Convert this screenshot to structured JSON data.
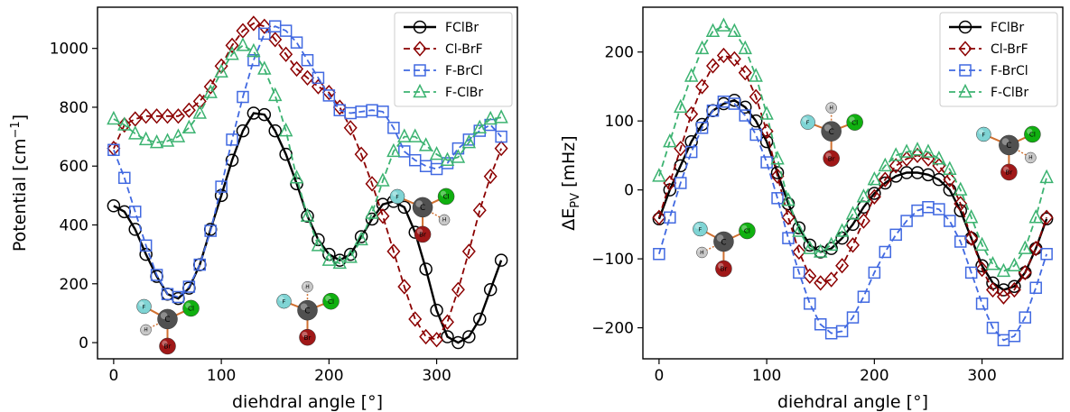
{
  "figure": {
    "molecule_atoms": {
      "F": "F",
      "Cl": "Cl",
      "Br": "Br",
      "H": "H",
      "C": "C"
    }
  },
  "colors": {
    "FClBr": "#000000",
    "Cl-BrF": "#8b0000",
    "F-BrCl": "#4169e1",
    "F-ClBr": "#3cb371",
    "atom_F": "#7fd4d4",
    "atom_Cl": "#10b010",
    "atom_Br": "#a01818",
    "atom_H": "#c8c8c8",
    "atom_C": "#505050",
    "bond": "#d07030"
  },
  "chart_data": [
    {
      "type": "line",
      "xlabel": "diehdral angle [°]",
      "ylabel": "Potential [cm⁻¹]",
      "xlim": [
        -15,
        375
      ],
      "ylim": [
        -55,
        1140
      ],
      "xticks": [
        0,
        100,
        200,
        300
      ],
      "yticks": [
        0,
        200,
        400,
        600,
        800,
        1000
      ],
      "legend": "top-right",
      "series": [
        {
          "name": "FClBr",
          "style": "solid-circle",
          "x": [
            0,
            10,
            20,
            30,
            40,
            50,
            60,
            70,
            80,
            90,
            100,
            110,
            120,
            130,
            140,
            150,
            160,
            170,
            180,
            190,
            200,
            210,
            220,
            230,
            240,
            250,
            260,
            270,
            280,
            290,
            300,
            310,
            320,
            330,
            340,
            350,
            360
          ],
          "y": [
            465,
            445,
            385,
            300,
            225,
            165,
            150,
            185,
            265,
            385,
            500,
            620,
            720,
            780,
            775,
            720,
            640,
            540,
            430,
            350,
            300,
            280,
            300,
            360,
            420,
            470,
            480,
            460,
            375,
            250,
            110,
            20,
            0,
            20,
            80,
            180,
            280
          ]
        },
        {
          "name": "Cl-BrF",
          "style": "dashed-diamond",
          "x": [
            0,
            10,
            20,
            30,
            40,
            50,
            60,
            70,
            80,
            90,
            100,
            110,
            120,
            130,
            140,
            150,
            160,
            170,
            180,
            190,
            200,
            210,
            220,
            230,
            240,
            250,
            260,
            270,
            280,
            290,
            300,
            310,
            320,
            330,
            340,
            350,
            360
          ],
          "y": [
            660,
            740,
            760,
            770,
            770,
            770,
            770,
            790,
            820,
            870,
            940,
            1010,
            1060,
            1085,
            1075,
            1030,
            980,
            930,
            900,
            870,
            850,
            800,
            730,
            640,
            540,
            430,
            310,
            190,
            80,
            20,
            10,
            70,
            180,
            310,
            450,
            565,
            660
          ]
        },
        {
          "name": "F-BrCl",
          "style": "dashed-square",
          "x": [
            0,
            10,
            20,
            30,
            40,
            50,
            60,
            70,
            80,
            90,
            100,
            110,
            120,
            130,
            140,
            150,
            160,
            170,
            180,
            190,
            200,
            210,
            220,
            230,
            240,
            250,
            260,
            270,
            280,
            290,
            300,
            310,
            320,
            330,
            340,
            350,
            360
          ],
          "y": [
            655,
            560,
            445,
            330,
            230,
            165,
            155,
            190,
            265,
            380,
            530,
            690,
            835,
            960,
            1050,
            1075,
            1060,
            1020,
            960,
            900,
            840,
            790,
            780,
            785,
            790,
            785,
            730,
            650,
            620,
            600,
            590,
            610,
            660,
            690,
            720,
            740,
            700
          ]
        },
        {
          "name": "F-ClBr",
          "style": "dashed-triangle",
          "x": [
            0,
            10,
            20,
            30,
            40,
            50,
            60,
            70,
            80,
            90,
            100,
            110,
            120,
            130,
            140,
            150,
            160,
            170,
            180,
            190,
            200,
            210,
            220,
            230,
            240,
            250,
            260,
            270,
            280,
            290,
            300,
            310,
            320,
            330,
            340,
            350,
            360
          ],
          "y": [
            760,
            740,
            710,
            690,
            680,
            685,
            700,
            730,
            780,
            850,
            920,
            980,
            1010,
            990,
            930,
            840,
            720,
            560,
            430,
            330,
            280,
            270,
            290,
            350,
            440,
            550,
            650,
            700,
            700,
            670,
            640,
            620,
            630,
            680,
            730,
            760,
            765
          ]
        }
      ]
    },
    {
      "type": "line",
      "xlabel": "diehdral angle [°]",
      "ylabel": "ΔE_PV [mHz]",
      "xlim": [
        -15,
        375
      ],
      "ylim": [
        -245,
        265
      ],
      "xticks": [
        0,
        100,
        200,
        300
      ],
      "yticks": [
        -200,
        -100,
        0,
        100,
        200
      ],
      "legend": "top-right",
      "series": [
        {
          "name": "FClBr",
          "style": "solid-circle",
          "x": [
            0,
            10,
            20,
            30,
            40,
            50,
            60,
            70,
            80,
            90,
            100,
            110,
            120,
            130,
            140,
            150,
            160,
            170,
            180,
            190,
            200,
            210,
            220,
            230,
            240,
            250,
            260,
            270,
            280,
            290,
            300,
            310,
            320,
            330,
            340,
            350,
            360
          ],
          "y": [
            -42,
            0,
            35,
            70,
            95,
            115,
            125,
            130,
            120,
            100,
            70,
            25,
            -20,
            -55,
            -80,
            -90,
            -85,
            -70,
            -50,
            -25,
            -5,
            10,
            20,
            25,
            25,
            22,
            15,
            0,
            -30,
            -70,
            -110,
            -135,
            -145,
            -140,
            -120,
            -85,
            -42
          ]
        },
        {
          "name": "Cl-BrF",
          "style": "dashed-diamond",
          "x": [
            0,
            10,
            20,
            30,
            40,
            50,
            60,
            70,
            80,
            90,
            100,
            110,
            120,
            130,
            140,
            150,
            160,
            170,
            180,
            190,
            200,
            210,
            220,
            230,
            240,
            250,
            260,
            270,
            280,
            290,
            300,
            310,
            320,
            330,
            340,
            350,
            360
          ],
          "y": [
            -40,
            10,
            60,
            110,
            150,
            180,
            195,
            190,
            170,
            135,
            85,
            20,
            -40,
            -90,
            -125,
            -135,
            -130,
            -110,
            -80,
            -45,
            -10,
            15,
            35,
            45,
            50,
            45,
            35,
            15,
            -20,
            -70,
            -115,
            -145,
            -155,
            -145,
            -120,
            -85,
            -40
          ]
        },
        {
          "name": "F-BrCl",
          "style": "dashed-square",
          "x": [
            0,
            10,
            20,
            30,
            40,
            50,
            60,
            70,
            80,
            90,
            100,
            110,
            120,
            130,
            140,
            150,
            160,
            170,
            180,
            190,
            200,
            210,
            220,
            230,
            240,
            250,
            260,
            270,
            280,
            290,
            300,
            310,
            320,
            330,
            340,
            350,
            360
          ],
          "y": [
            -93,
            -40,
            10,
            55,
            90,
            115,
            128,
            125,
            108,
            80,
            40,
            -12,
            -70,
            -120,
            -165,
            -195,
            -208,
            -205,
            -185,
            -155,
            -120,
            -90,
            -65,
            -45,
            -30,
            -25,
            -28,
            -45,
            -75,
            -120,
            -165,
            -200,
            -218,
            -212,
            -185,
            -142,
            -93
          ]
        },
        {
          "name": "F-ClBr",
          "style": "dashed-triangle",
          "x": [
            0,
            10,
            20,
            30,
            40,
            50,
            60,
            70,
            80,
            90,
            100,
            110,
            120,
            130,
            140,
            150,
            160,
            170,
            180,
            190,
            200,
            210,
            220,
            230,
            240,
            250,
            260,
            270,
            280,
            290,
            300,
            310,
            320,
            330,
            340,
            350,
            360
          ],
          "y": [
            20,
            70,
            120,
            165,
            205,
            230,
            238,
            230,
            205,
            165,
            110,
            45,
            -15,
            -60,
            -85,
            -90,
            -80,
            -60,
            -35,
            -10,
            15,
            35,
            50,
            55,
            58,
            55,
            45,
            30,
            0,
            -40,
            -80,
            -108,
            -118,
            -110,
            -85,
            -40,
            18
          ]
        }
      ]
    }
  ]
}
